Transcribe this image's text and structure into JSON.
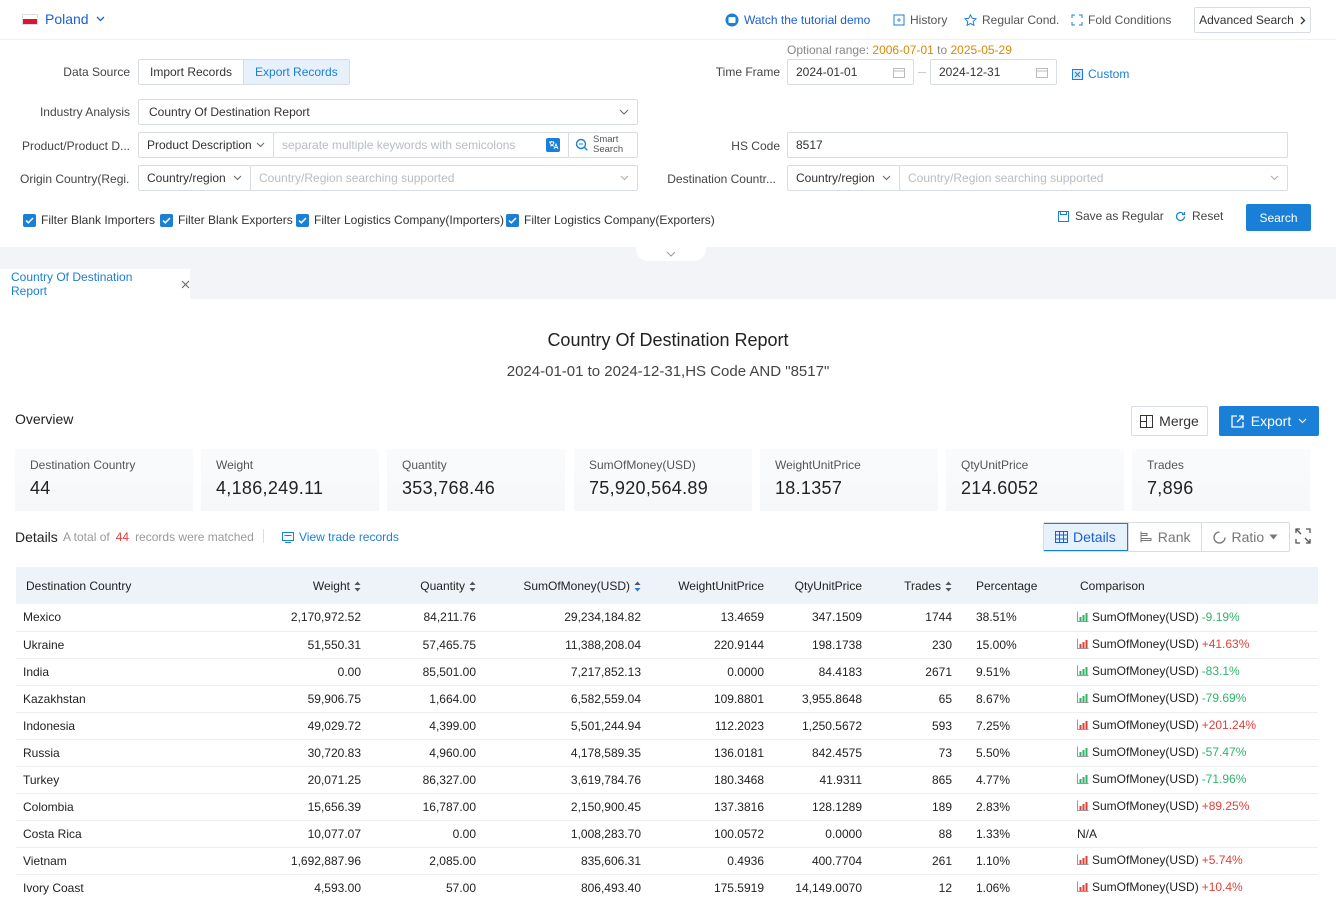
{
  "topbar": {
    "country": "Poland",
    "tutorial": "Watch the tutorial demo",
    "history": "History",
    "regular_cond": "Regular Cond.",
    "fold_conditions": "Fold Conditions",
    "advanced_search": "Advanced Search"
  },
  "form": {
    "optional_range_label": "Optional range:",
    "optional_range_start": "2006-07-01",
    "optional_range_to": "to",
    "optional_range_end": "2025-05-29",
    "data_source_label": "Data Source",
    "import_records": "Import Records",
    "export_records": "Export Records",
    "time_frame_label": "Time Frame",
    "date_start": "2024-01-01",
    "date_end": "2024-12-31",
    "custom": "Custom",
    "industry_label": "Industry Analysis",
    "industry_value": "Country Of Destination Report",
    "product_label": "Product/Product D...",
    "product_type": "Product Description",
    "product_placeholder": "separate multiple keywords with semicolons",
    "smart_search_1": "Smart",
    "smart_search_2": "Search",
    "hs_label": "HS Code",
    "hs_value": "8517",
    "origin_label": "Origin Country(Regi...",
    "origin_type": "Country/region",
    "origin_placeholder": "Country/Region searching supported",
    "dest_label": "Destination Countr...",
    "dest_type": "Country/region",
    "dest_placeholder": "Country/Region searching supported",
    "filters": [
      "Filter Blank Importers",
      "Filter Blank Exporters",
      "Filter Logistics Company(Importers)",
      "Filter Logistics Company(Exporters)"
    ],
    "save_regular": "Save as Regular",
    "reset": "Reset",
    "search": "Search"
  },
  "tab": {
    "label": "Country Of Destination Report"
  },
  "report": {
    "title": "Country Of Destination Report",
    "subtitle": "2024-01-01 to 2024-12-31,HS Code AND \"8517\""
  },
  "overview": {
    "title": "Overview",
    "merge": "Merge",
    "export": "Export",
    "stats": [
      {
        "label": "Destination Country",
        "value": "44"
      },
      {
        "label": "Weight",
        "value": "4,186,249.11"
      },
      {
        "label": "Quantity",
        "value": "353,768.46"
      },
      {
        "label": "SumOfMoney(USD)",
        "value": "75,920,564.89"
      },
      {
        "label": "WeightUnitPrice",
        "value": "18.1357"
      },
      {
        "label": "QtyUnitPrice",
        "value": "214.6052"
      },
      {
        "label": "Trades",
        "value": "7,896"
      }
    ]
  },
  "details": {
    "title": "Details",
    "total_prefix": "A total of",
    "total_count": "44",
    "total_suffix": "records were matched",
    "view_trade": "View trade records",
    "tabs": [
      "Details",
      "Rank",
      "Ratio"
    ]
  },
  "table": {
    "headers": [
      "Destination Country",
      "Weight",
      "Quantity",
      "SumOfMoney(USD)",
      "WeightUnitPrice",
      "QtyUnitPrice",
      "Trades",
      "Percentage",
      "Comparison"
    ],
    "rows": [
      {
        "country": "Mexico",
        "weight": "2,170,972.52",
        "qty": "84,211.76",
        "money": "29,234,184.82",
        "wup": "13.4659",
        "qup": "347.1509",
        "trades": "1744",
        "pct": "38.51%",
        "cmp_label": "SumOfMoney(USD)",
        "cmp": "-9.19%",
        "dir": "down"
      },
      {
        "country": "Ukraine",
        "weight": "51,550.31",
        "qty": "57,465.75",
        "money": "11,388,208.04",
        "wup": "220.9144",
        "qup": "198.1738",
        "trades": "230",
        "pct": "15.00%",
        "cmp_label": "SumOfMoney(USD)",
        "cmp": "+41.63%",
        "dir": "up"
      },
      {
        "country": "India",
        "weight": "0.00",
        "qty": "85,501.00",
        "money": "7,217,852.13",
        "wup": "0.0000",
        "qup": "84.4183",
        "trades": "2671",
        "pct": "9.51%",
        "cmp_label": "SumOfMoney(USD)",
        "cmp": "-83.1%",
        "dir": "down"
      },
      {
        "country": "Kazakhstan",
        "weight": "59,906.75",
        "qty": "1,664.00",
        "money": "6,582,559.04",
        "wup": "109.8801",
        "qup": "3,955.8648",
        "trades": "65",
        "pct": "8.67%",
        "cmp_label": "SumOfMoney(USD)",
        "cmp": "-79.69%",
        "dir": "down"
      },
      {
        "country": "Indonesia",
        "weight": "49,029.72",
        "qty": "4,399.00",
        "money": "5,501,244.94",
        "wup": "112.2023",
        "qup": "1,250.5672",
        "trades": "593",
        "pct": "7.25%",
        "cmp_label": "SumOfMoney(USD)",
        "cmp": "+201.24%",
        "dir": "up"
      },
      {
        "country": "Russia",
        "weight": "30,720.83",
        "qty": "4,960.00",
        "money": "4,178,589.35",
        "wup": "136.0181",
        "qup": "842.4575",
        "trades": "73",
        "pct": "5.50%",
        "cmp_label": "SumOfMoney(USD)",
        "cmp": "-57.47%",
        "dir": "down"
      },
      {
        "country": "Turkey",
        "weight": "20,071.25",
        "qty": "86,327.00",
        "money": "3,619,784.76",
        "wup": "180.3468",
        "qup": "41.9311",
        "trades": "865",
        "pct": "4.77%",
        "cmp_label": "SumOfMoney(USD)",
        "cmp": "-71.96%",
        "dir": "down"
      },
      {
        "country": "Colombia",
        "weight": "15,656.39",
        "qty": "16,787.00",
        "money": "2,150,900.45",
        "wup": "137.3816",
        "qup": "128.1289",
        "trades": "189",
        "pct": "2.83%",
        "cmp_label": "SumOfMoney(USD)",
        "cmp": "+89.25%",
        "dir": "up"
      },
      {
        "country": "Costa Rica",
        "weight": "10,077.07",
        "qty": "0.00",
        "money": "1,008,283.70",
        "wup": "100.0572",
        "qup": "0.0000",
        "trades": "88",
        "pct": "1.33%",
        "cmp_label": "N/A",
        "cmp": "",
        "dir": "none"
      },
      {
        "country": "Vietnam",
        "weight": "1,692,887.96",
        "qty": "2,085.00",
        "money": "835,606.31",
        "wup": "0.4936",
        "qup": "400.7704",
        "trades": "261",
        "pct": "1.10%",
        "cmp_label": "SumOfMoney(USD)",
        "cmp": "+5.74%",
        "dir": "up"
      },
      {
        "country": "Ivory Coast",
        "weight": "4,593.00",
        "qty": "57.00",
        "money": "806,493.40",
        "wup": "175.5919",
        "qup": "14,149.0070",
        "trades": "12",
        "pct": "1.06%",
        "cmp_label": "SumOfMoney(USD)",
        "cmp": "+10.4%",
        "dir": "up"
      }
    ]
  },
  "colors": {
    "accent": "#1a7fd6",
    "up": "#e0403a",
    "down": "#2fb36b",
    "range": "#d68a06"
  }
}
